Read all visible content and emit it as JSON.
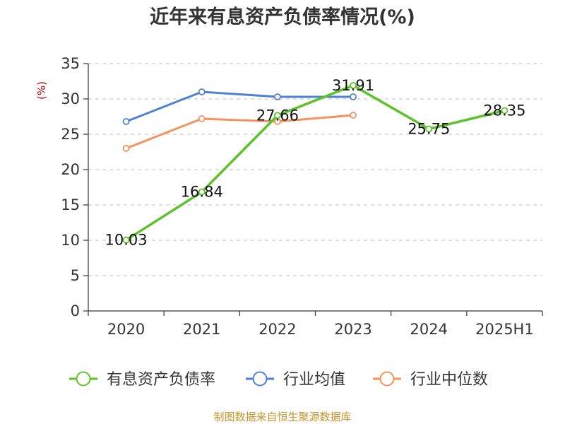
{
  "chart_data": {
    "type": "line",
    "title": "近年来有息资产负债率情况(%)",
    "ylabel": "(%)",
    "categories": [
      "2020",
      "2021",
      "2022",
      "2023",
      "2024",
      "2025H1"
    ],
    "ylim": [
      0,
      35
    ],
    "yticks": [
      0,
      5,
      10,
      15,
      20,
      25,
      30,
      35
    ],
    "grid": true,
    "legend_position": "bottom",
    "series": [
      {
        "name": "有息资产负债率",
        "color": "#5ec22c",
        "values": [
          10.03,
          16.84,
          27.66,
          31.91,
          25.75,
          28.35
        ],
        "labels": [
          "10.03",
          "16.84",
          "27.66",
          "31.91",
          "25.75",
          "28.35"
        ],
        "labeled": true
      },
      {
        "name": "行业均值",
        "color": "#4f80d6",
        "values": [
          26.8,
          31.0,
          30.3,
          30.3,
          null,
          null
        ],
        "labeled": false
      },
      {
        "name": "行业中位数",
        "color": "#f7915e",
        "values": [
          23.0,
          27.2,
          26.8,
          27.7,
          null,
          null
        ],
        "labeled": false
      }
    ]
  },
  "colors": {
    "unit_label": "#cc0000",
    "source_text": "#c8932a",
    "axis": "#333333",
    "grid": "#cccccc"
  },
  "source": "制图数据来自恒生聚源数据库"
}
